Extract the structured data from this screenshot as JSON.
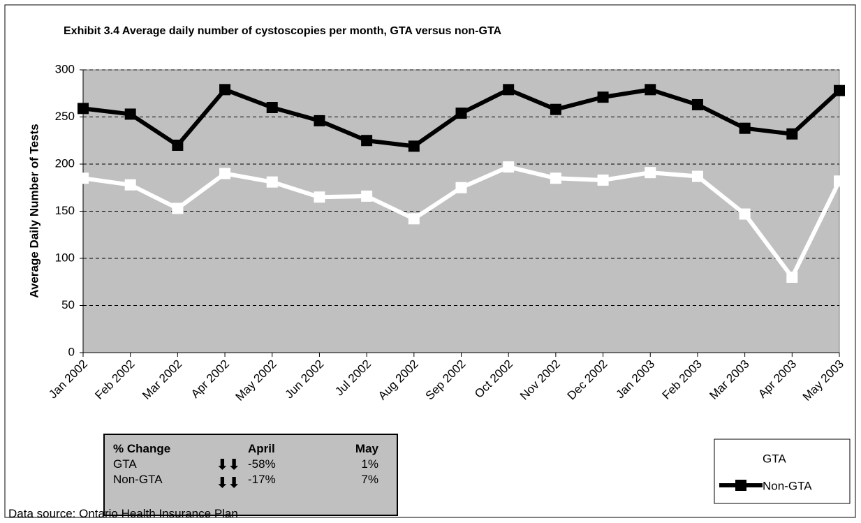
{
  "chart_data": {
    "type": "line",
    "title": "Exhibit 3.4 Average daily number of cystoscopies per month, GTA versus non-GTA",
    "y_label": "Average Daily Number of Tests",
    "categories": [
      "Jan 2002",
      "Feb 2002",
      "Mar 2002",
      "Apr 2002",
      "May 2002",
      "Jun 2002",
      "Jul 2002",
      "Aug 2002",
      "Sep 2002",
      "Oct 2002",
      "Nov 2002",
      "Dec 2002",
      "Jan 2003",
      "Feb 2003",
      "Mar 2003",
      "Apr 2003",
      "May 2003"
    ],
    "series": [
      {
        "name": "GTA",
        "color": "#ffffff",
        "values": [
          185,
          178,
          153,
          190,
          181,
          165,
          166,
          142,
          175,
          197,
          185,
          183,
          191,
          187,
          147,
          80,
          182
        ]
      },
      {
        "name": "Non-GTA",
        "color": "#000000",
        "values": [
          259,
          253,
          220,
          279,
          260,
          246,
          225,
          219,
          254,
          279,
          258,
          271,
          279,
          263,
          238,
          232,
          278
        ]
      }
    ],
    "ylim": [
      0,
      300
    ],
    "yticks": [
      0,
      50,
      100,
      150,
      200,
      250,
      300
    ],
    "grid": true,
    "plot_background": "#c0c0c0",
    "legend": "bottom-right"
  },
  "table": {
    "header": [
      "% Change",
      "April",
      "May"
    ],
    "rows": [
      [
        "GTA",
        "-58%",
        "1%"
      ],
      [
        "Non-GTA",
        "-17%",
        "7%"
      ]
    ]
  },
  "source": "Data source: Ontario Health Insurance Plan"
}
